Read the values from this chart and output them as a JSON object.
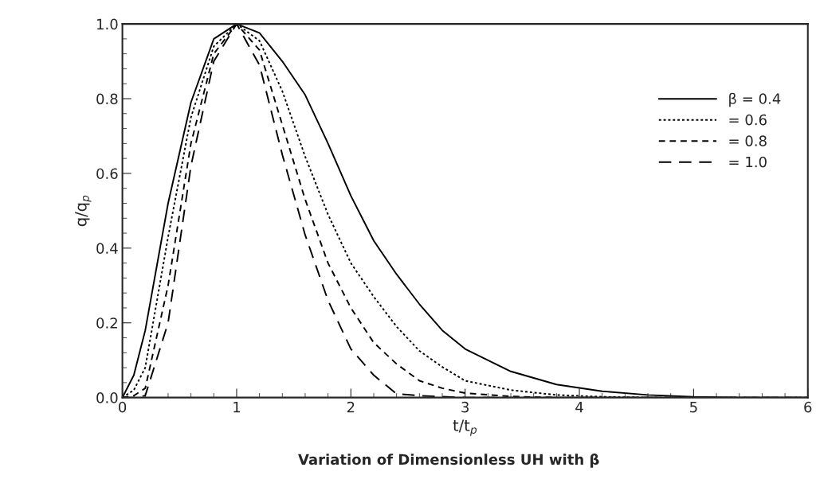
{
  "chart_data": {
    "type": "line",
    "title": "Variation of Dimensionless UH with β",
    "xlabel": "t/t$_{p}$",
    "ylabel": "q/q$_{p}$",
    "xlim": [
      0,
      6
    ],
    "xticks": [
      0,
      1,
      2,
      3,
      4,
      5,
      6
    ],
    "ylim": [
      0,
      1
    ],
    "yticks": [
      {
        "value": 0,
        "label": "0.0"
      },
      {
        "value": 0.2,
        "label": "0.2"
      },
      {
        "value": 0.4,
        "label": "0.4"
      },
      {
        "value": 0.6,
        "label": "0.6"
      },
      {
        "value": 0.8,
        "label": "0.8"
      },
      {
        "value": 1,
        "label": "1.0"
      }
    ],
    "grid": false,
    "legend": "top right",
    "marker": "none",
    "series": [
      {
        "name": "β = 0.4",
        "color": "#000000",
        "line_style": "solid",
        "x": [
          0,
          0.1,
          0.2,
          0.4,
          0.6,
          0.8,
          1.0,
          1.2,
          1.4,
          1.6,
          1.8,
          2.0,
          2.2,
          2.4,
          2.6,
          2.8,
          3.0,
          3.4,
          3.8,
          4.2,
          4.6,
          5.0,
          5.4,
          6.0
        ],
        "values": [
          0,
          0.06,
          0.18,
          0.52,
          0.79,
          0.96,
          1.0,
          0.976,
          0.9,
          0.81,
          0.68,
          0.54,
          0.42,
          0.33,
          0.25,
          0.18,
          0.13,
          0.07,
          0.035,
          0.017,
          0.007,
          0.002,
          0,
          0
        ]
      },
      {
        "name": "= 0.6",
        "color": "#000000",
        "line_style": "dotted",
        "x": [
          0,
          0.1,
          0.2,
          0.4,
          0.6,
          0.8,
          1.0,
          1.2,
          1.4,
          1.6,
          1.8,
          2.0,
          2.2,
          2.4,
          2.6,
          2.8,
          3.0,
          3.4,
          3.8,
          4.2,
          4.6,
          6.0
        ],
        "values": [
          0,
          0.02,
          0.08,
          0.43,
          0.75,
          0.94,
          1.0,
          0.955,
          0.82,
          0.645,
          0.49,
          0.36,
          0.27,
          0.19,
          0.125,
          0.082,
          0.045,
          0.02,
          0.007,
          0.002,
          0,
          0
        ]
      },
      {
        "name": "= 0.8",
        "color": "#000000",
        "line_style": "dashed",
        "x": [
          0,
          0.1,
          0.2,
          0.4,
          0.6,
          0.8,
          1.0,
          1.2,
          1.4,
          1.6,
          1.8,
          2.0,
          2.2,
          2.4,
          2.6,
          2.8,
          3.0,
          3.4,
          3.8,
          6.0
        ],
        "values": [
          0,
          0.005,
          0.025,
          0.3,
          0.68,
          0.92,
          1.0,
          0.93,
          0.73,
          0.53,
          0.36,
          0.24,
          0.147,
          0.09,
          0.045,
          0.025,
          0.012,
          0.003,
          0,
          0
        ]
      },
      {
        "name": "= 1.0",
        "color": "#000000",
        "line_style": "longdash",
        "x": [
          0,
          0.1,
          0.2,
          0.4,
          0.6,
          0.8,
          1.0,
          1.2,
          1.4,
          1.6,
          1.8,
          2.0,
          2.2,
          2.4,
          2.6,
          3.0,
          6.0
        ],
        "values": [
          0,
          0,
          0.005,
          0.2,
          0.62,
          0.9,
          1.0,
          0.89,
          0.65,
          0.435,
          0.26,
          0.13,
          0.06,
          0.01,
          0.005,
          0,
          0
        ]
      }
    ]
  }
}
